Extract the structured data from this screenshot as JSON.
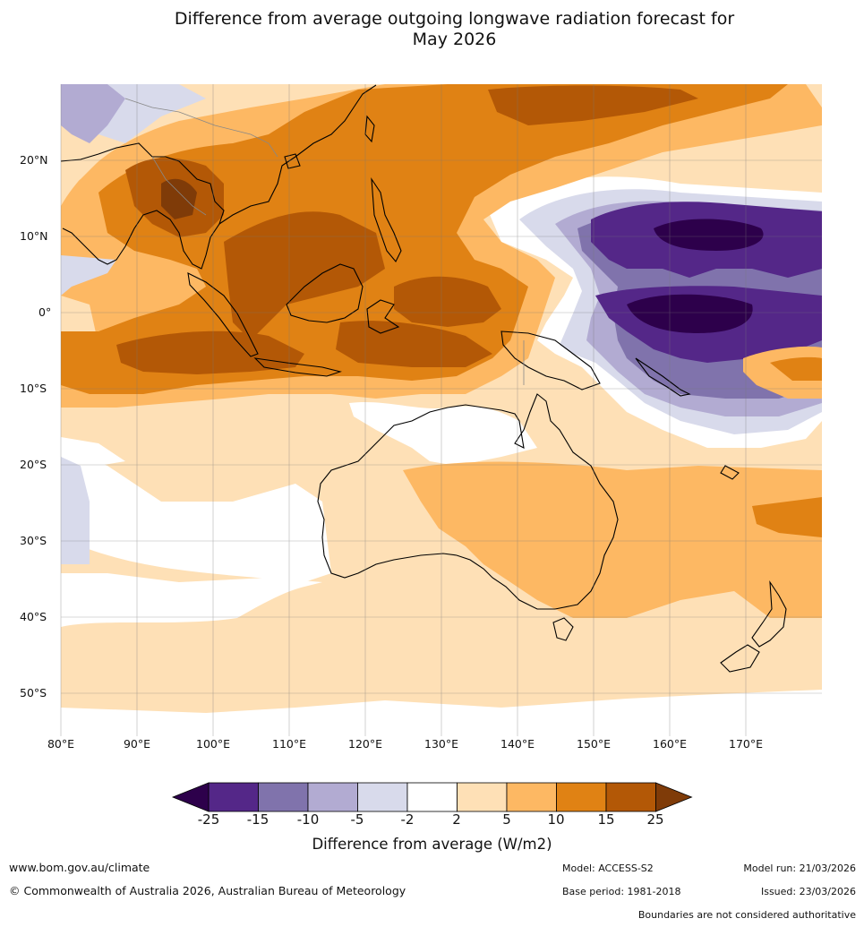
{
  "title": {
    "line1": "Difference from average outgoing longwave radiation forecast for",
    "line2": "May 2026"
  },
  "axes": {
    "lat_labels": [
      "20°N",
      "10°N",
      "0°",
      "10°S",
      "20°S",
      "30°S",
      "40°S",
      "50°S"
    ],
    "lon_labels": [
      "80°E",
      "90°E",
      "100°E",
      "110°E",
      "120°E",
      "130°E",
      "140°E",
      "150°E",
      "160°E",
      "170°E"
    ]
  },
  "colorbar": {
    "ticks": [
      "-25",
      "-15",
      "-10",
      "-5",
      "-2",
      "2",
      "5",
      "10",
      "15",
      "25"
    ],
    "title": "Difference from average (W/m2)",
    "colors": {
      "below_min": "#2d004b",
      "neg_25_15": "#542788",
      "neg_15_10": "#8073ac",
      "neg_10_5": "#b2abd2",
      "neg_5_2": "#d8daeb",
      "neutral": "#ffffff",
      "pos_2_5": "#fee0b6",
      "pos_5_10": "#fdb863",
      "pos_10_15": "#e08214",
      "pos_15_25": "#b35806",
      "above_max": "#7f3b08"
    }
  },
  "footer": {
    "website": "www.bom.gov.au/climate",
    "copyright": "© Commonwealth of Australia 2026, Australian Bureau of Meteorology",
    "model": "Model: ACCESS-S2",
    "base_period": "Base period: 1981-2018",
    "model_run": "Model run: 21/03/2026",
    "issued": "Issued: 23/03/2026",
    "disclaimer": "Boundaries are not considered authoritative"
  }
}
